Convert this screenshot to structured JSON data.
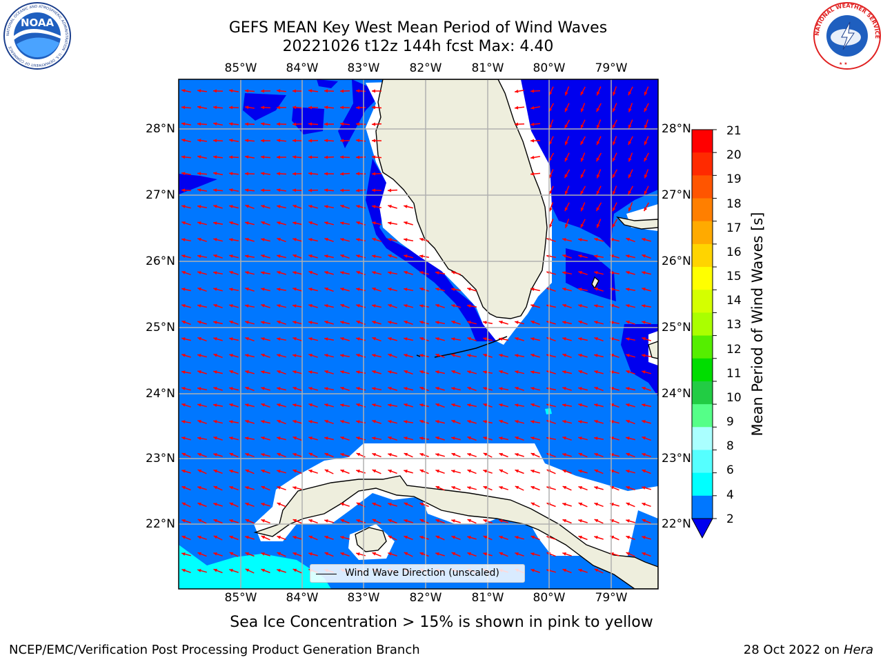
{
  "title": {
    "line1": "GEFS MEAN Key West Mean Period of Wind Waves",
    "line2": "20221026 t12z 144h fcst   Max: 4.40"
  },
  "map": {
    "lon_labels": [
      "85°W",
      "84°W",
      "83°W",
      "82°W",
      "81°W",
      "80°W",
      "79°W"
    ],
    "lat_labels": [
      "28°N",
      "27°N",
      "26°N",
      "25°N",
      "24°N",
      "23°N",
      "22°N"
    ],
    "legend": "Wind Wave Direction (unscaled)",
    "arrow_color": "#ff0000",
    "land_color": "#eeeedd",
    "shading_colors": [
      "#0000ee",
      "#0077ff",
      "#00ffff"
    ]
  },
  "colorbar": {
    "label": "Mean Period of Wind Waves [s]",
    "ticks": [
      "21",
      "20",
      "19",
      "18",
      "17",
      "16",
      "15",
      "14",
      "13",
      "12",
      "11",
      "10",
      "9",
      "8",
      "6",
      "4",
      "2"
    ],
    "colors": [
      "#ff0000",
      "#ff2a00",
      "#ff5500",
      "#ff7f00",
      "#ffaa00",
      "#ffd400",
      "#ffff00",
      "#d4ff00",
      "#aaff00",
      "#55ee00",
      "#00dd00",
      "#22cc44",
      "#55ff88",
      "#aaffff",
      "#55ffff",
      "#00ffff",
      "#0077ff"
    ],
    "under_color": "#0000ee"
  },
  "footer": {
    "note": "Sea Ice Concentration > 15% is shown in pink to yellow",
    "credit": "NCEP/EMC/Verification Post Processing Product Generation Branch",
    "date": "28 Oct 2022 on",
    "host": "Hera"
  },
  "logos": {
    "noaa_text": "NOAA",
    "noaa_ring": "NATIONAL OCEANIC AND ATMOSPHERIC ADMINISTRATION · U.S. DEPARTMENT OF COMMERCE",
    "nws_ring": "NATIONAL WEATHER SERVICE"
  }
}
